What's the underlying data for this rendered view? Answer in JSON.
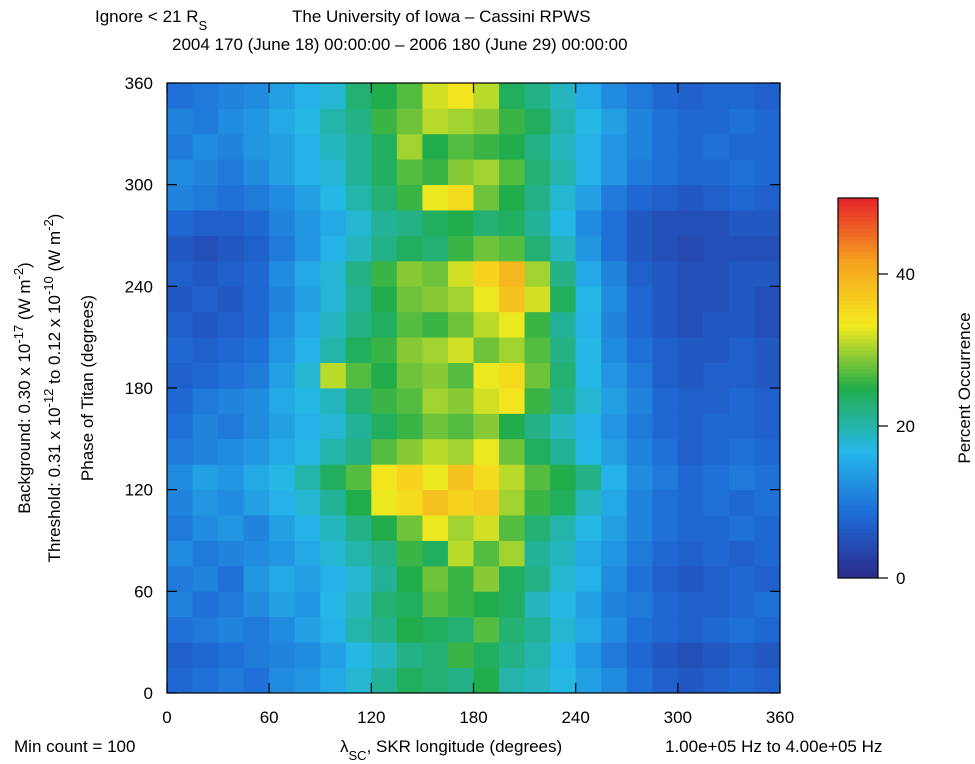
{
  "chart_data": {
    "type": "heatmap",
    "header_left": [
      "Ignore < 21 R",
      "S"
    ],
    "title": "The University of Iowa – Cassini RPWS",
    "subtitle": "2004 170 (June 18) 00:00:00 – 2006 180 (June 29) 00:00:00",
    "background_label": [
      "Background:  0.30 x 10",
      "-17",
      " (W m",
      "-2",
      ")"
    ],
    "threshold_label": [
      "Threshold:  0.31 x 10",
      "-12",
      " to  0.12 x 10",
      "-10",
      " (W m",
      "-2",
      ")"
    ],
    "y_label": "Phase of Titan (degrees)",
    "x_label": [
      "λ",
      "SC",
      ", SKR longitude (degrees)"
    ],
    "footer_left": "Min count = 100",
    "footer_right": "1.00e+05 Hz to  4.00e+05 Hz",
    "colorbar_label": "Percent Occurrence",
    "xbins": [
      0,
      15,
      30,
      45,
      60,
      75,
      90,
      105,
      120,
      135,
      150,
      165,
      180,
      195,
      210,
      225,
      240,
      255,
      270,
      285,
      300,
      315,
      330,
      345,
      360
    ],
    "ybins": [
      0,
      15,
      30,
      45,
      60,
      75,
      90,
      105,
      120,
      135,
      150,
      165,
      180,
      195,
      210,
      225,
      240,
      255,
      270,
      285,
      300,
      315,
      330,
      345,
      360
    ],
    "xlim": [
      0,
      360
    ],
    "ylim": [
      0,
      360
    ],
    "xticks": [
      0,
      60,
      120,
      180,
      240,
      300,
      360
    ],
    "yticks": [
      0,
      60,
      120,
      180,
      240,
      300,
      360
    ],
    "zlim": [
      0,
      50
    ],
    "zticks": [
      0,
      20,
      40
    ],
    "colorscale": [
      "#2b2a8a",
      "#1e6ad6",
      "#25b8ea",
      "#22ad4c",
      "#f4ea1e",
      "#f6a11f",
      "#e5232a"
    ],
    "z": [
      [
        8,
        9,
        10,
        9,
        12,
        13,
        15,
        18,
        21,
        24,
        23,
        22,
        25,
        20,
        19,
        17,
        14,
        12,
        9,
        7,
        6,
        7,
        8,
        7
      ],
      [
        7,
        8,
        9,
        10,
        11,
        12,
        14,
        17,
        19,
        22,
        23,
        26,
        24,
        22,
        20,
        16,
        13,
        10,
        8,
        6,
        5,
        6,
        7,
        6
      ],
      [
        9,
        10,
        11,
        10,
        12,
        14,
        16,
        20,
        22,
        25,
        24,
        23,
        27,
        23,
        21,
        18,
        15,
        12,
        9,
        8,
        7,
        8,
        9,
        8
      ],
      [
        11,
        9,
        10,
        12,
        14,
        13,
        17,
        19,
        23,
        24,
        27,
        26,
        25,
        24,
        19,
        17,
        14,
        11,
        10,
        8,
        7,
        7,
        8,
        9
      ],
      [
        10,
        11,
        9,
        13,
        15,
        14,
        16,
        18,
        21,
        25,
        28,
        26,
        29,
        24,
        22,
        18,
        16,
        12,
        9,
        7,
        6,
        7,
        8,
        7
      ],
      [
        12,
        10,
        11,
        12,
        13,
        15,
        18,
        20,
        22,
        26,
        24,
        31,
        27,
        30,
        21,
        19,
        15,
        13,
        10,
        8,
        7,
        8,
        7,
        8
      ],
      [
        10,
        12,
        13,
        11,
        14,
        16,
        19,
        22,
        25,
        28,
        33,
        30,
        32,
        27,
        23,
        20,
        17,
        14,
        11,
        9,
        8,
        8,
        9,
        8
      ],
      [
        11,
        13,
        12,
        14,
        16,
        18,
        21,
        25,
        33,
        35,
        38,
        36,
        37,
        30,
        26,
        24,
        19,
        15,
        11,
        9,
        8,
        9,
        8,
        9
      ],
      [
        12,
        14,
        13,
        15,
        17,
        20,
        24,
        27,
        34,
        36,
        33,
        38,
        35,
        31,
        27,
        25,
        22,
        16,
        12,
        10,
        8,
        9,
        10,
        9
      ],
      [
        10,
        11,
        12,
        13,
        15,
        17,
        20,
        22,
        27,
        29,
        31,
        30,
        33,
        28,
        24,
        21,
        17,
        14,
        11,
        9,
        7,
        8,
        9,
        8
      ],
      [
        9,
        11,
        10,
        12,
        14,
        16,
        18,
        21,
        24,
        26,
        28,
        27,
        29,
        25,
        22,
        19,
        16,
        13,
        10,
        8,
        7,
        8,
        8,
        7
      ],
      [
        8,
        10,
        11,
        12,
        15,
        17,
        19,
        23,
        26,
        27,
        30,
        29,
        32,
        34,
        26,
        22,
        18,
        14,
        11,
        8,
        7,
        7,
        8,
        7
      ],
      [
        7,
        8,
        9,
        10,
        14,
        18,
        31,
        27,
        25,
        28,
        29,
        27,
        33,
        35,
        28,
        23,
        17,
        13,
        10,
        7,
        6,
        7,
        7,
        6
      ],
      [
        8,
        7,
        8,
        9,
        13,
        16,
        20,
        24,
        26,
        29,
        30,
        32,
        28,
        30,
        27,
        22,
        17,
        12,
        9,
        7,
        6,
        6,
        7,
        6
      ],
      [
        7,
        6,
        7,
        8,
        12,
        15,
        19,
        22,
        24,
        27,
        26,
        28,
        31,
        33,
        26,
        21,
        16,
        11,
        8,
        6,
        5,
        6,
        6,
        5
      ],
      [
        6,
        7,
        6,
        8,
        11,
        14,
        18,
        21,
        25,
        28,
        29,
        30,
        33,
        38,
        32,
        24,
        17,
        12,
        8,
        6,
        5,
        5,
        6,
        5
      ],
      [
        7,
        6,
        7,
        8,
        12,
        15,
        18,
        22,
        26,
        29,
        28,
        32,
        36,
        39,
        30,
        22,
        15,
        11,
        7,
        6,
        5,
        5,
        6,
        6
      ],
      [
        6,
        5,
        6,
        7,
        10,
        13,
        16,
        19,
        22,
        24,
        23,
        26,
        28,
        27,
        23,
        19,
        13,
        9,
        6,
        5,
        4,
        5,
        5,
        5
      ],
      [
        8,
        7,
        7,
        8,
        11,
        13,
        15,
        18,
        21,
        22,
        24,
        25,
        23,
        24,
        21,
        17,
        12,
        9,
        6,
        5,
        5,
        5,
        6,
        6
      ],
      [
        11,
        10,
        9,
        10,
        12,
        14,
        17,
        20,
        23,
        26,
        33,
        35,
        28,
        25,
        22,
        18,
        14,
        10,
        8,
        7,
        6,
        7,
        8,
        7
      ],
      [
        12,
        11,
        10,
        12,
        14,
        16,
        18,
        21,
        24,
        27,
        26,
        29,
        30,
        27,
        23,
        20,
        16,
        13,
        10,
        9,
        8,
        8,
        9,
        8
      ],
      [
        10,
        12,
        11,
        13,
        14,
        16,
        19,
        21,
        24,
        30,
        25,
        27,
        26,
        25,
        22,
        19,
        16,
        13,
        11,
        9,
        8,
        9,
        8,
        8
      ],
      [
        11,
        10,
        12,
        13,
        15,
        17,
        20,
        22,
        26,
        28,
        31,
        30,
        29,
        26,
        24,
        20,
        17,
        14,
        11,
        9,
        8,
        8,
        9,
        8
      ],
      [
        9,
        10,
        11,
        12,
        14,
        16,
        18,
        23,
        25,
        27,
        32,
        34,
        31,
        24,
        22,
        19,
        15,
        12,
        10,
        8,
        7,
        8,
        8,
        7
      ]
    ]
  }
}
